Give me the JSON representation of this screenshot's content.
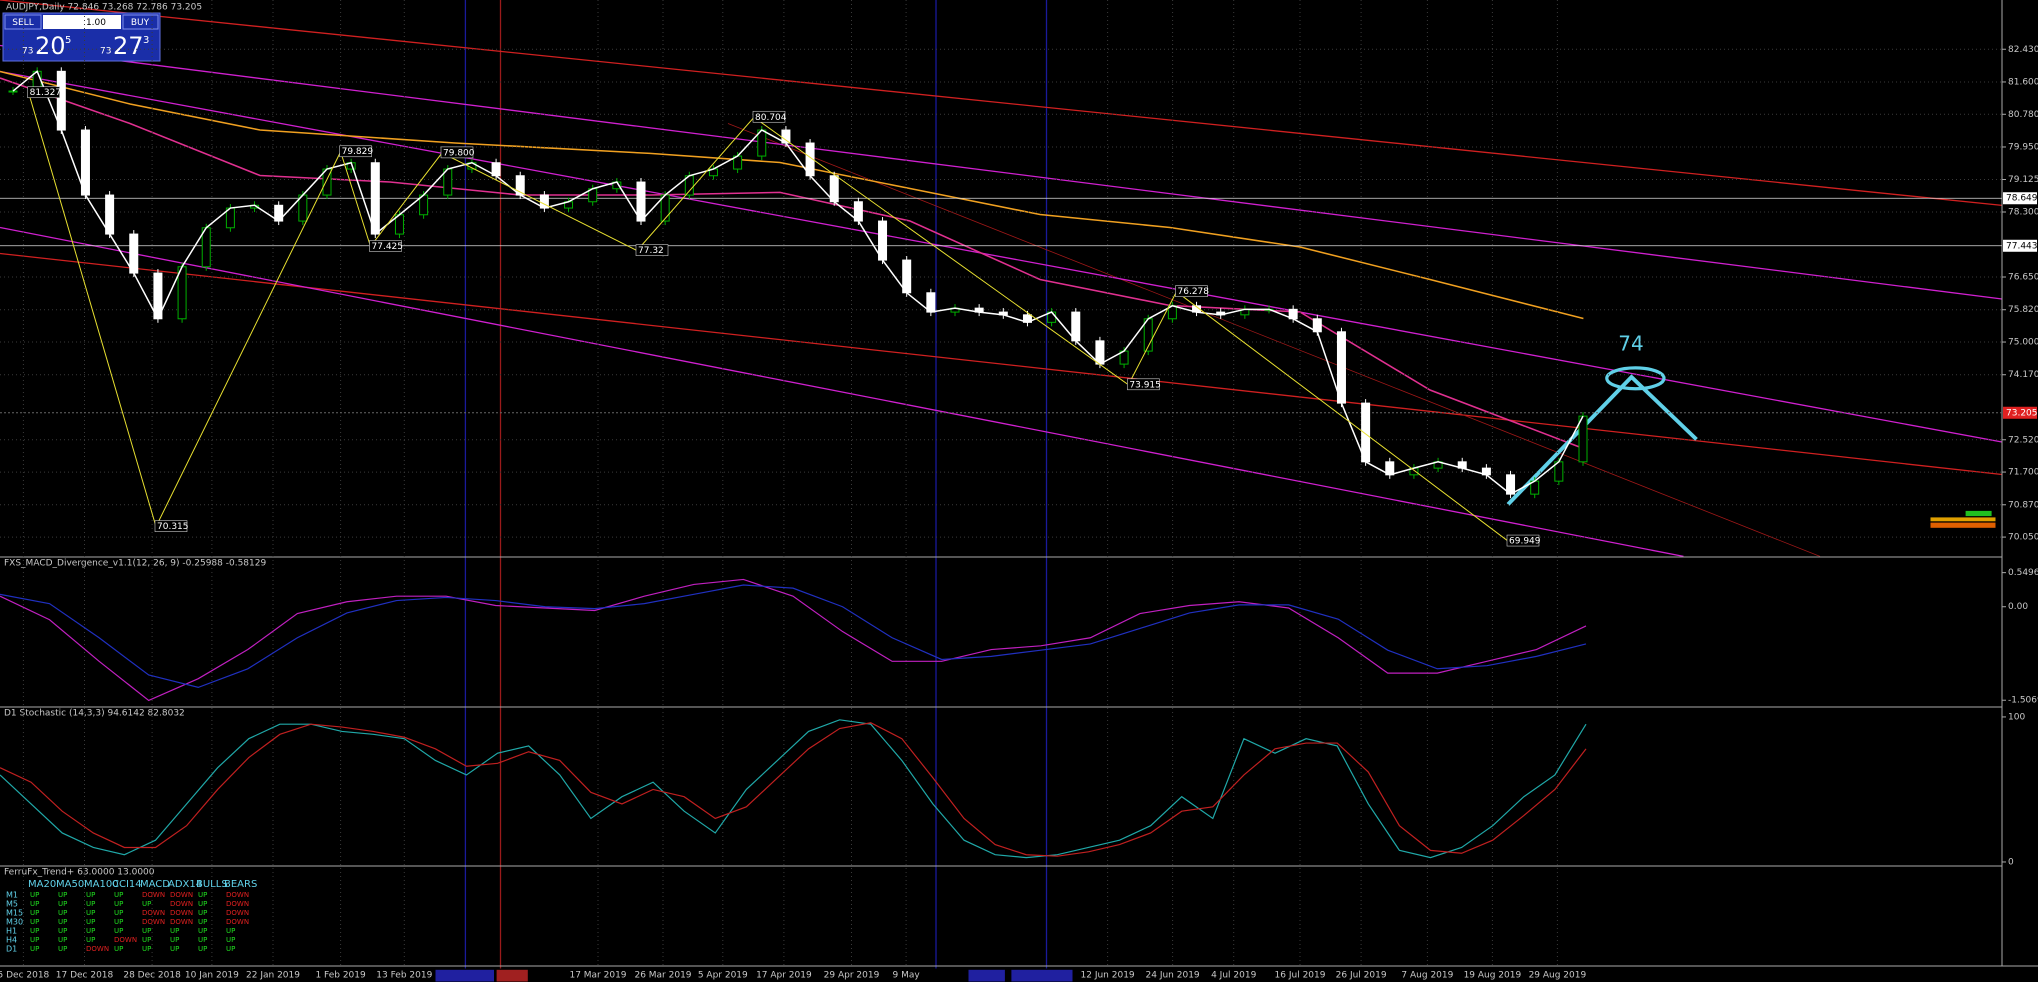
{
  "window": {
    "symbol_header": "AUDJPY,Daily  72.846 73.268 72.786 73.205"
  },
  "trade_panel": {
    "sell": "SELL",
    "lot": "1.00",
    "buy": "BUY",
    "bid_prefix": "73",
    "bid_big": "20",
    "bid_pip": "5",
    "ask_prefix": "73",
    "ask_big": "27",
    "ask_pip": "3"
  },
  "chart_data": [
    {
      "type": "candlestick",
      "closes": [
        81.37,
        81.87,
        80.38,
        78.73,
        77.74,
        76.75,
        75.59,
        76.91,
        77.9,
        78.4,
        78.47,
        78.07,
        78.73,
        79.39,
        79.55,
        77.74,
        78.23,
        78.73,
        79.39,
        79.55,
        79.22,
        78.73,
        78.4,
        78.56,
        78.89,
        79.06,
        78.07,
        78.73,
        79.22,
        79.39,
        79.72,
        80.38,
        80.05,
        79.22,
        78.56,
        78.07,
        77.08,
        76.25,
        75.76,
        75.86,
        75.76,
        75.69,
        75.5,
        75.76,
        75.03,
        74.44,
        74.77,
        75.59,
        75.92,
        75.76,
        75.69,
        75.83,
        75.83,
        75.59,
        75.26,
        73.45,
        71.96,
        71.63,
        71.8,
        71.96,
        71.8,
        71.63,
        71.14,
        71.47,
        71.96,
        73.12
      ],
      "colors": {
        "up": "#00b000",
        "down": "#ffffff",
        "line": "#ffffff",
        "zigzag": "#e8e030"
      },
      "ylim": [
        69.57,
        83.68
      ],
      "yticks": [
        {
          "value": 82.43,
          "label": "82.430"
        },
        {
          "value": 81.6,
          "label": "81.600"
        },
        {
          "value": 80.78,
          "label": "80.780"
        },
        {
          "value": 79.95,
          "label": "79.950"
        },
        79.125,
        {
          "value": 78.3,
          "label": "78.300"
        },
        {
          "value": 76.65,
          "label": "76.650"
        },
        {
          "value": 75.82,
          "label": "75.820"
        },
        {
          "value": 75,
          "label": "75.000"
        },
        {
          "value": 74.17,
          "label": "74.170"
        },
        {
          "value": 72.52,
          "label": "72.520"
        },
        {
          "value": 71.7,
          "label": "71.700"
        },
        {
          "value": 70.87,
          "label": "70.870"
        },
        {
          "value": 70.05,
          "label": "70.050"
        }
      ],
      "price_levels": [
        78.649,
        77.443
      ],
      "current_price": 73.205,
      "zigzag_labels": [
        81.327,
        70.315,
        79.829,
        77.425,
        {
          "value": 79.8,
          "label": "79.800"
        },
        77.32,
        80.704,
        73.915,
        76.278,
        69.949
      ],
      "categories": [
        "5 Dec 2018",
        "17 Dec 2018",
        "28 Dec 2018",
        "10 Jan 2019",
        "22 Jan 2019",
        "1 Feb 2019",
        "13 Feb 2019",
        "17 Mar 2019",
        "26 Mar 2019",
        "5 Apr 2019",
        "17 Apr 2019",
        "29 Apr 2019",
        "9 May",
        "12 Jun 2019",
        "24 Jun 2019",
        "4 Jul 2019",
        "16 Jul 2019",
        "26 Jul 2019",
        "7 Aug 2019",
        "19 Aug 2019",
        "29 Aug 2019"
      ],
      "annotation": "74"
    },
    {
      "type": "line",
      "title": "FXS_MACD_Divergence_v1.1(12, 26, 9) -0.25988 -0.58129",
      "series": [
        {
          "color": "#c020c0",
          "values": [
            0.17,
            -0.21,
            -0.88,
            -1.51,
            -1.16,
            -0.69,
            -0.11,
            0.08,
            0.17,
            0.17,
            0.02,
            -0.02,
            -0.06,
            0.17,
            0.36,
            0.44,
            0.17,
            -0.4,
            -0.88,
            -0.88,
            -0.69,
            -0.63,
            -0.5,
            -0.11,
            0.02,
            0.08,
            -0.02,
            -0.5,
            -1.07,
            -1.07,
            -0.88,
            -0.69,
            -0.31
          ]
        },
        {
          "color": "#2030c0",
          "values": [
            0.2,
            0.05,
            -0.5,
            -1.1,
            -1.3,
            -1.0,
            -0.5,
            -0.1,
            0.1,
            0.15,
            0.1,
            0.0,
            -0.03,
            0.05,
            0.2,
            0.35,
            0.3,
            0.0,
            -0.5,
            -0.85,
            -0.8,
            -0.7,
            -0.6,
            -0.35,
            -0.1,
            0.03,
            0.03,
            -0.2,
            -0.7,
            -1.0,
            -0.95,
            -0.8,
            -0.6
          ]
        }
      ],
      "ylim": [
        -1.6,
        0.56
      ],
      "yticks": [
        0.54969,
        {
          "value": 0,
          "label": "0.00"
        },
        -1.50693
      ]
    },
    {
      "type": "line",
      "title": "D1 Stochastic (14,3,3) 94.6142 82.8032",
      "series": [
        {
          "color": "#20a8a8",
          "values": [
            60,
            40,
            20,
            10,
            5,
            15,
            40,
            65,
            85,
            95,
            95,
            90,
            88,
            85,
            70,
            60,
            75,
            80,
            60,
            30,
            45,
            55,
            35,
            20,
            50,
            70,
            90,
            98,
            95,
            70,
            40,
            15,
            5,
            3,
            5,
            10,
            15,
            25,
            45,
            30,
            85,
            75,
            85,
            80,
            40,
            8,
            3,
            10,
            25,
            45,
            60,
            95
          ]
        },
        {
          "color": "#c02020",
          "values": [
            65,
            55,
            35,
            20,
            10,
            10,
            25,
            50,
            72,
            88,
            95,
            93,
            90,
            86,
            78,
            66,
            68,
            76,
            70,
            48,
            40,
            50,
            45,
            30,
            38,
            58,
            78,
            92,
            96,
            85,
            58,
            30,
            12,
            5,
            4,
            7,
            12,
            20,
            35,
            38,
            60,
            78,
            82,
            82,
            62,
            25,
            8,
            6,
            15,
            32,
            50,
            78
          ]
        }
      ],
      "ylim": [
        -1.4,
        103.4
      ],
      "yticks": [
        100,
        0
      ]
    }
  ],
  "trend_panel": {
    "title": "FerruFx_Trend+ 63.0000 13.0000",
    "columns": [
      "MA20",
      "MA50",
      "MA100",
      "CCI14",
      "MACD",
      "ADX14",
      "BULLS",
      "BEARS"
    ],
    "rows": [
      {
        "tf": "M1",
        "values": [
          "UP",
          "UP",
          "UP",
          "UP",
          "DOWN",
          "DOWN",
          "UP",
          "DOWN"
        ]
      },
      {
        "tf": "M5",
        "values": [
          "UP",
          "UP",
          "UP",
          "UP",
          "UP",
          "DOWN",
          "UP",
          "DOWN"
        ]
      },
      {
        "tf": "M15",
        "values": [
          "UP",
          "UP",
          "UP",
          "UP",
          "DOWN",
          "DOWN",
          "UP",
          "DOWN"
        ]
      },
      {
        "tf": "M30",
        "values": [
          "UP",
          "UP",
          "UP",
          "UP",
          "DOWN",
          "DOWN",
          "UP",
          "DOWN"
        ]
      },
      {
        "tf": "H1",
        "values": [
          "UP",
          "UP",
          "UP",
          "UP",
          "UP",
          "UP",
          "UP",
          "UP"
        ]
      },
      {
        "tf": "H4",
        "values": [
          "UP",
          "UP",
          "UP",
          "DOWN",
          "UP",
          "UP",
          "UP",
          "UP"
        ]
      },
      {
        "tf": "D1",
        "values": [
          "UP",
          "UP",
          "DOWN",
          "UP",
          "UP",
          "UP",
          "UP",
          "UP"
        ]
      }
    ]
  }
}
